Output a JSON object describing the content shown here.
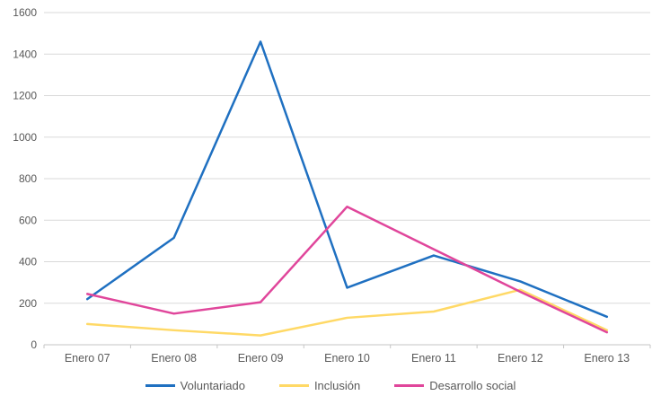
{
  "chart_data": {
    "type": "line",
    "categories": [
      "Enero 07",
      "Enero 08",
      "Enero 09",
      "Enero 10",
      "Enero 11",
      "Enero 12",
      "Enero 13"
    ],
    "series": [
      {
        "name": "Voluntariado",
        "color": "#1F70C1",
        "values": [
          220,
          515,
          1460,
          275,
          430,
          305,
          135
        ]
      },
      {
        "name": "Inclusión",
        "color": "#FFD966",
        "values": [
          100,
          70,
          45,
          130,
          160,
          265,
          70
        ]
      },
      {
        "name": "Desarrollo social",
        "color": "#E0469B",
        "values": [
          245,
          150,
          205,
          665,
          460,
          255,
          60
        ]
      }
    ],
    "yticks": [
      0,
      200,
      400,
      600,
      800,
      1000,
      1200,
      1400,
      1600
    ],
    "ylim": [
      0,
      1600
    ],
    "grid": true,
    "legend_position": "bottom",
    "style": {
      "grid_color": "#D9D9D9",
      "axis_color": "#C6C6C6",
      "label_color": "#595959",
      "background": "#FFFFFF"
    }
  }
}
